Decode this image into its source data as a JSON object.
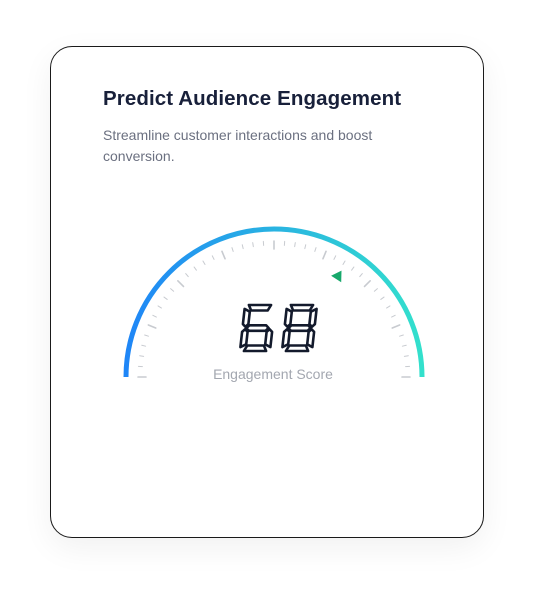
{
  "card": {
    "title": "Predict Audience Engagement",
    "subtitle": "Streamline customer interactions and boost conversion."
  },
  "gauge": {
    "score": 68,
    "score_text": "68",
    "label": "Engagement Score",
    "min": 0,
    "max": 100,
    "gradient_start": "#1f86f7",
    "gradient_end": "#33e0cc",
    "indicator_color": "#17a86b",
    "digit_color": "#131a2c",
    "tick_color": "#c8cbd0"
  }
}
